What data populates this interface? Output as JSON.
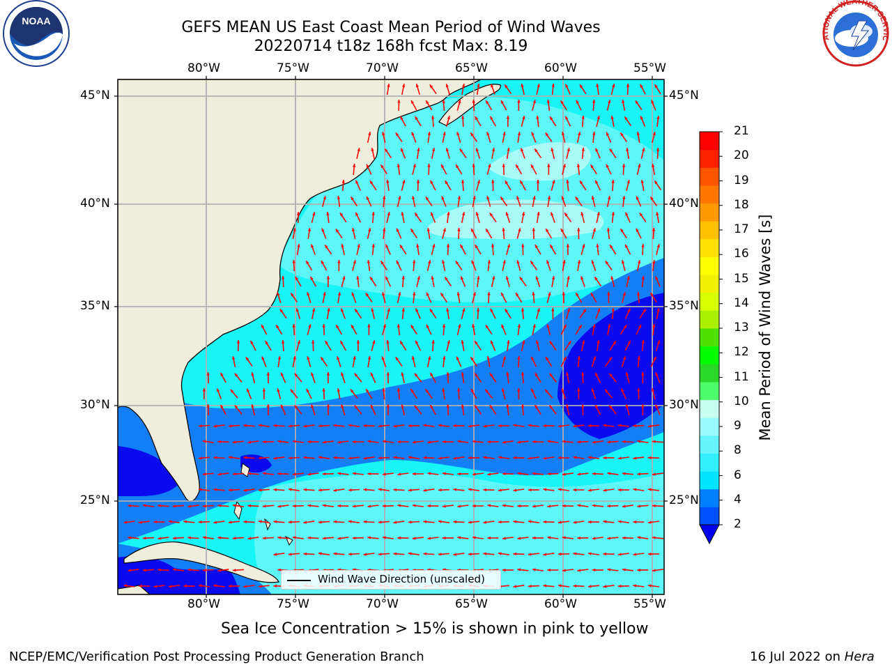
{
  "title": {
    "line1": "GEFS MEAN US East Coast Mean Period of Wind Waves",
    "line2": "20220714 t18z 168h fcst   Max: 8.19"
  },
  "axes": {
    "lon_top": [
      "80°W",
      "75°W",
      "70°W",
      "65°W",
      "60°W",
      "55°W"
    ],
    "lon_bottom": [
      "80°W",
      "75°W",
      "70°W",
      "65°W",
      "60°W",
      "55°W"
    ],
    "lat_left": [
      "45°N",
      "40°N",
      "35°N",
      "30°N",
      "25°N"
    ],
    "lat_right": [
      "45°N",
      "40°N",
      "35°N",
      "30°N",
      "25°N"
    ]
  },
  "colorbar": {
    "title": "Mean Period of Wind Waves [s]",
    "ticks": [
      "21",
      "20",
      "19",
      "18",
      "17",
      "16",
      "15",
      "14",
      "13",
      "12",
      "11",
      "10",
      "9",
      "8",
      "6",
      "4",
      "2"
    ],
    "colors": [
      "#0050ff",
      "#007fff",
      "#00e5ff",
      "#33f0ff",
      "#66f5ff",
      "#99faff",
      "#c8fff0",
      "#4cff6a",
      "#2ad82a",
      "#00ff00",
      "#50e000",
      "#aaee00",
      "#d8ff00",
      "#f0f000",
      "#ffff00",
      "#ffe000",
      "#ffc000",
      "#ff9900",
      "#ff7700",
      "#ff5500",
      "#ff2200",
      "#ff0000"
    ]
  },
  "legend": {
    "label": "Wind Wave Direction (unscaled)"
  },
  "notes": {
    "sea_ice": "Sea Ice Concentration > 15% is shown in pink to yellow",
    "org": "NCEP/EMC/Verification Post Processing Product Generation Branch",
    "date": "16 Jul 2022 on",
    "machine": "Hera"
  },
  "logos": {
    "noaa_text": "NOAA",
    "nws_text": "NATIONAL WEATHER SERVICE"
  },
  "palette": {
    "land": "#efeedc",
    "c2_4": "#0a0aee",
    "c4_6": "#137ff6",
    "c6_8": "#17f5f7",
    "c8_9": "#5df7f7",
    "c9_10": "#a8fbf6",
    "arrow": "#ff0000",
    "grid": "#b0b0b0"
  }
}
